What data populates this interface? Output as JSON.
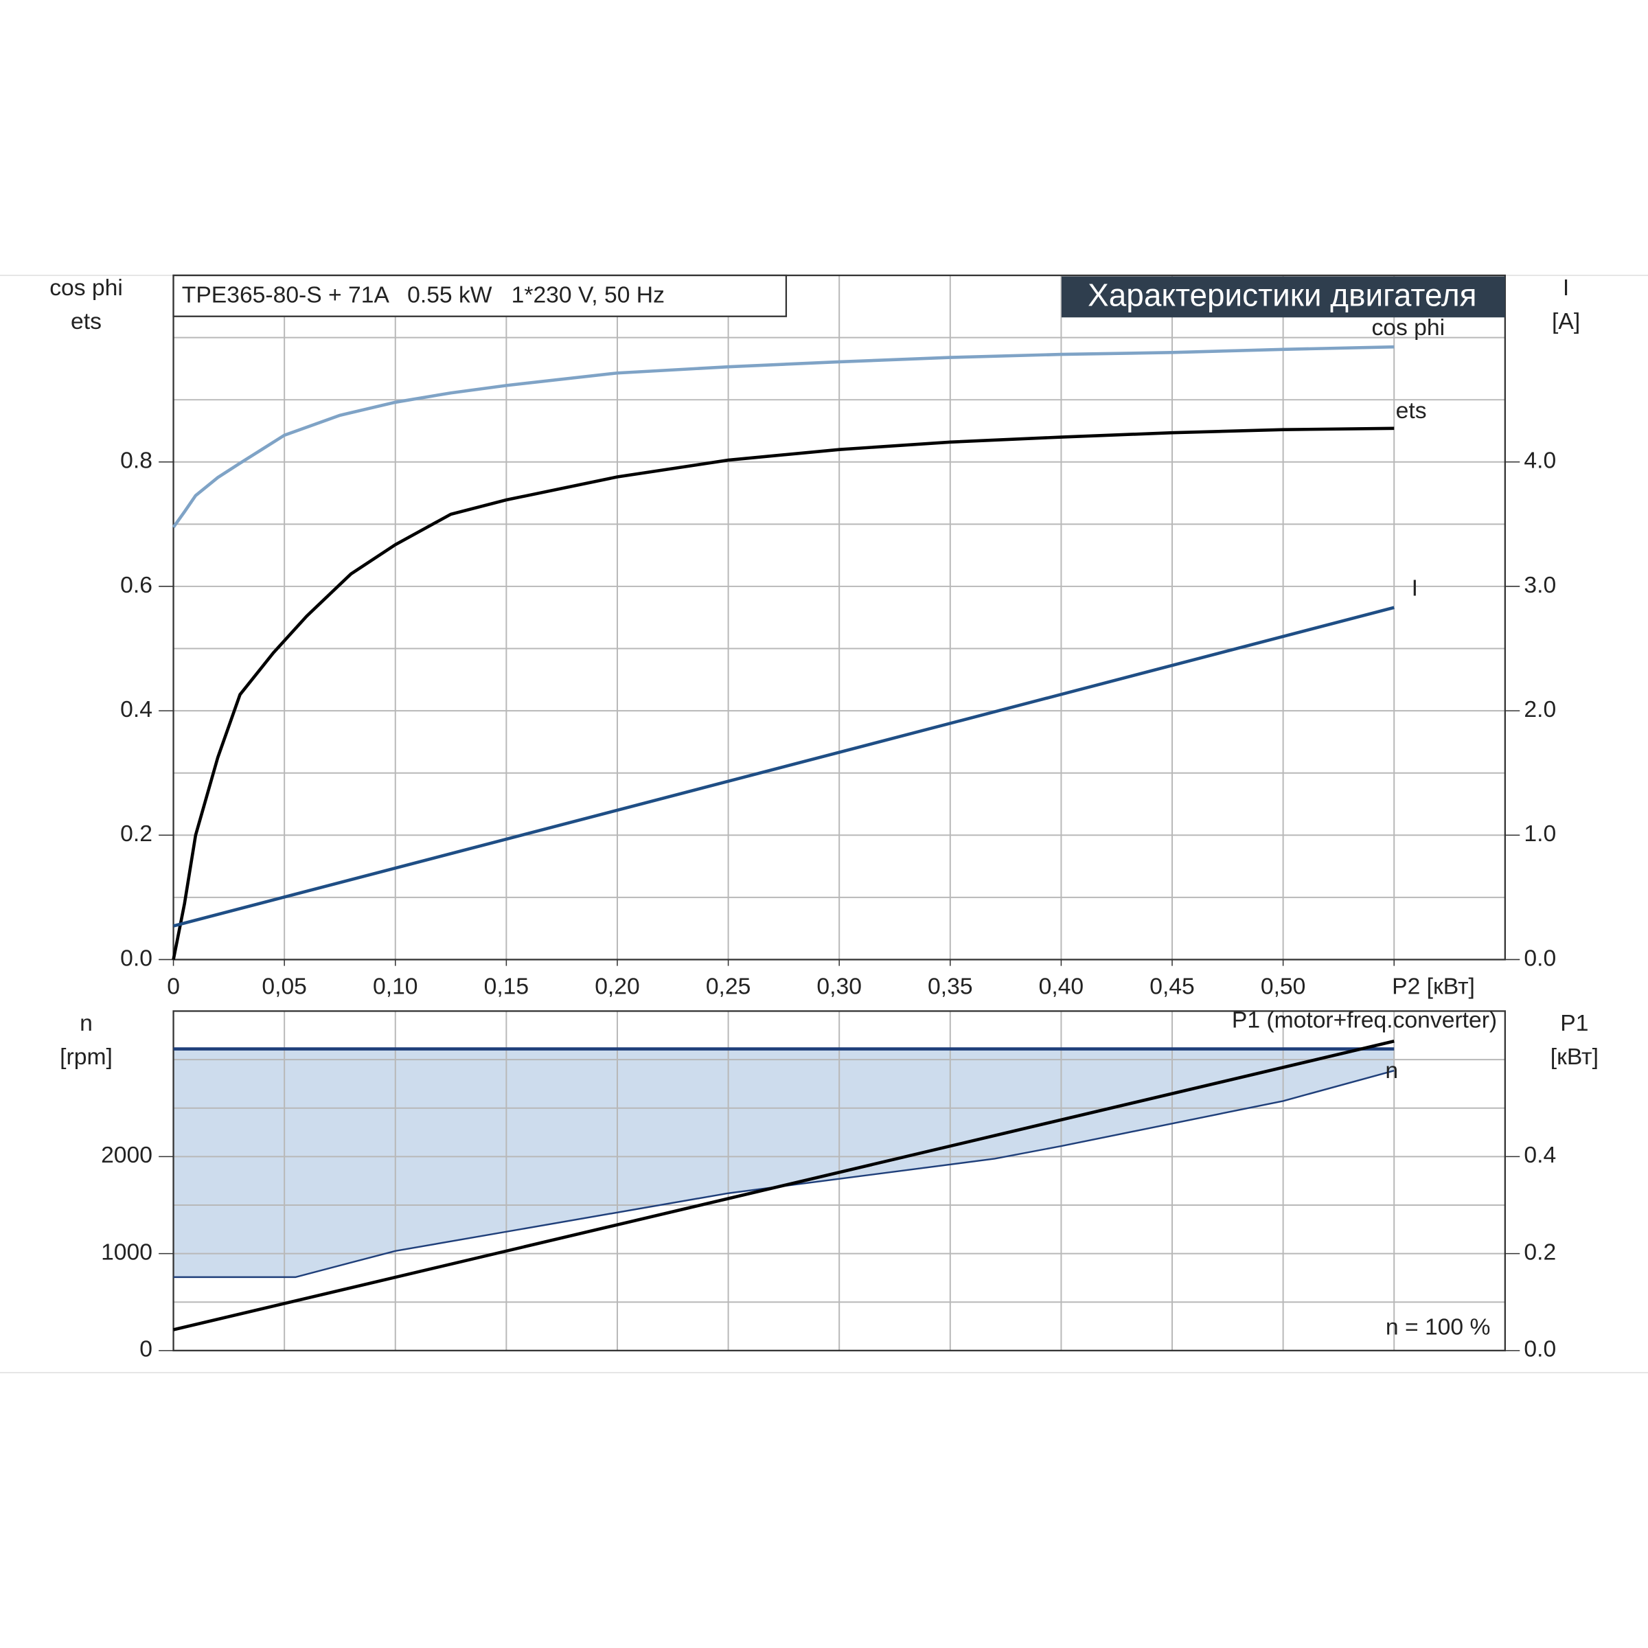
{
  "chart_data": [
    {
      "type": "line",
      "title": "TPE365-80-S + 71A   0.55 kW   1*230 V, 50 Hz",
      "header": "Характеристики двигателя",
      "y_label_lines": [
        "cos phi",
        "ets"
      ],
      "y2_label_lines": [
        "I",
        "[A]"
      ],
      "xlim": [
        0,
        0.6
      ],
      "xticks": [
        {
          "value": 0,
          "label": "0"
        },
        {
          "value": 0.05,
          "label": "0,05"
        },
        {
          "value": 0.1,
          "label": "0,10"
        },
        {
          "value": 0.15,
          "label": "0,15"
        },
        {
          "value": 0.2,
          "label": "0,20"
        },
        {
          "value": 0.25,
          "label": "0,25"
        },
        {
          "value": 0.3,
          "label": "0,30"
        },
        {
          "value": 0.35,
          "label": "0,35"
        },
        {
          "value": 0.4,
          "label": "0,40"
        },
        {
          "value": 0.45,
          "label": "0,45"
        },
        {
          "value": 0.5,
          "label": "0,50"
        },
        {
          "value": 0.55,
          "label": "P2 [кВт]"
        }
      ],
      "ylim": [
        0,
        1.1
      ],
      "yticks": [
        {
          "value": 0,
          "label": "0.0"
        },
        {
          "value": 0.2,
          "label": "0.2"
        },
        {
          "value": 0.4,
          "label": "0.4"
        },
        {
          "value": 0.6,
          "label": "0.6"
        },
        {
          "value": 0.8,
          "label": "0.8"
        }
      ],
      "ygrid": [
        0.1,
        0.2,
        0.3,
        0.4,
        0.5,
        0.6,
        0.7,
        0.8,
        0.9,
        1.0
      ],
      "y2lim": [
        0,
        5.5
      ],
      "y2ticks": [
        {
          "value": 0,
          "label": "0.0"
        },
        {
          "value": 1,
          "label": "1.0"
        },
        {
          "value": 2,
          "label": "2.0"
        },
        {
          "value": 3,
          "label": "3.0"
        },
        {
          "value": 4,
          "label": "4.0"
        }
      ],
      "grid": true,
      "series": [
        {
          "name": "cos phi",
          "color": "#7fa3c6",
          "axis": "y",
          "x": [
            0,
            0.005,
            0.01,
            0.02,
            0.03,
            0.05,
            0.075,
            0.1,
            0.125,
            0.15,
            0.2,
            0.25,
            0.3,
            0.35,
            0.4,
            0.45,
            0.5,
            0.55
          ],
          "values": [
            0.695,
            0.72,
            0.746,
            0.775,
            0.798,
            0.843,
            0.875,
            0.896,
            0.911,
            0.923,
            0.943,
            0.953,
            0.961,
            0.968,
            0.973,
            0.976,
            0.981,
            0.985
          ]
        },
        {
          "name": "ets",
          "color": "#000000",
          "axis": "y",
          "x": [
            0,
            0.005,
            0.01,
            0.02,
            0.03,
            0.045,
            0.06,
            0.08,
            0.1,
            0.125,
            0.15,
            0.2,
            0.25,
            0.3,
            0.35,
            0.4,
            0.45,
            0.5,
            0.55
          ],
          "values": [
            0,
            0.09,
            0.2,
            0.325,
            0.426,
            0.493,
            0.552,
            0.62,
            0.667,
            0.716,
            0.739,
            0.776,
            0.803,
            0.82,
            0.832,
            0.84,
            0.847,
            0.852,
            0.854
          ]
        },
        {
          "name": "I",
          "color": "#1f4e85",
          "axis": "y2",
          "x": [
            0,
            0.55
          ],
          "values": [
            0.27,
            2.83
          ]
        }
      ]
    },
    {
      "type": "line",
      "y_label_lines": [
        "n",
        "[rpm]"
      ],
      "y2_label_lines": [
        "P1",
        "[кВт]"
      ],
      "annotation": "n = 100 %",
      "xlim": [
        0,
        0.6
      ],
      "xgrid": [
        0.05,
        0.1,
        0.15,
        0.2,
        0.25,
        0.3,
        0.35,
        0.4,
        0.45,
        0.5,
        0.55
      ],
      "ylim": [
        0,
        3500
      ],
      "yticks": [
        0,
        1000,
        2000
      ],
      "ygrid": [
        500,
        1000,
        1500,
        2000,
        2500,
        3000
      ],
      "y2lim": [
        0,
        0.7
      ],
      "y2ticks": [
        {
          "value": 0,
          "label": "0.0"
        },
        {
          "value": 0.2,
          "label": "0.2"
        },
        {
          "value": 0.4,
          "label": "0.4"
        }
      ],
      "grid": true,
      "fill_color": "#cddced",
      "series": [
        {
          "name": "n",
          "color": "#1f3f7a",
          "axis": "y",
          "x": [
            0,
            0.055,
            0.1,
            0.25,
            0.37,
            0.4,
            0.5,
            0.55
          ],
          "values": [
            757,
            757,
            1027,
            1622,
            1978,
            2108,
            2573,
            2886
          ],
          "upper": [
            3110,
            3110,
            3110,
            3110,
            3110,
            3110,
            3110,
            3110
          ]
        },
        {
          "name": "P1 (motor+freq.converter)",
          "color": "#000000",
          "axis": "y2",
          "x": [
            0,
            0.55
          ],
          "values": [
            0.043,
            0.638
          ]
        }
      ]
    }
  ]
}
